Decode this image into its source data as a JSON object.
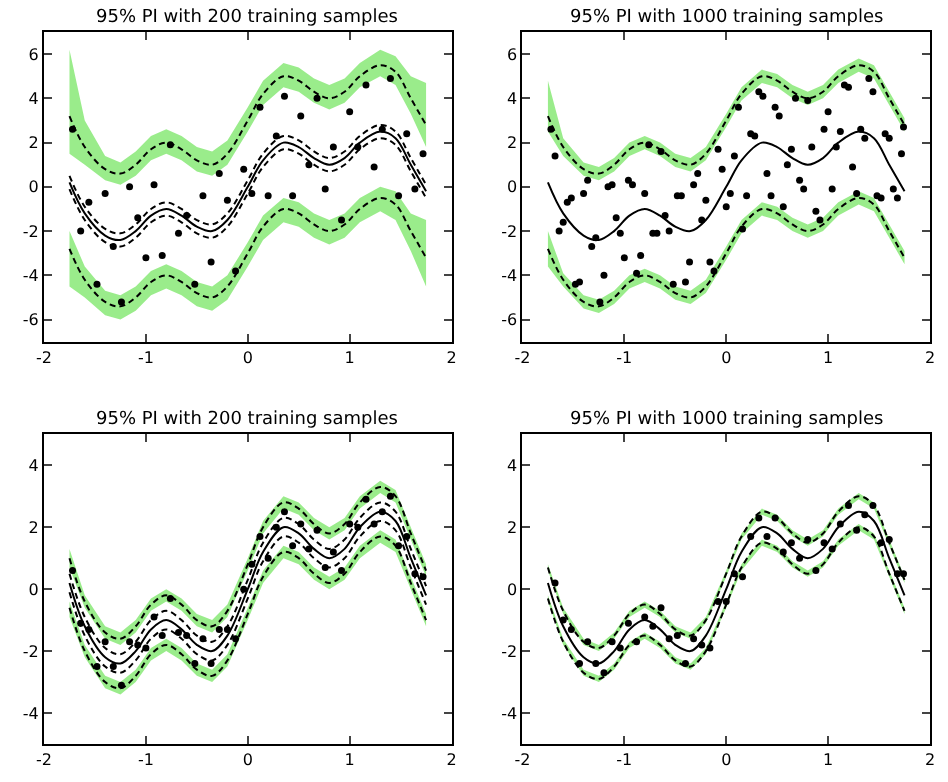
{
  "chart_data": [
    {
      "type": "line",
      "title": "95% PI with 200 training samples",
      "x": [
        -1.75,
        -1.6,
        -1.4,
        -1.25,
        -1.1,
        -0.95,
        -0.8,
        -0.65,
        -0.5,
        -0.35,
        -0.2,
        0,
        0.15,
        0.35,
        0.5,
        0.65,
        0.8,
        0.95,
        1.1,
        1.3,
        1.45,
        1.6,
        1.75
      ],
      "xlim": [
        -2,
        2
      ],
      "xticks": [
        -2,
        -1,
        0,
        1,
        2
      ],
      "ylim": [
        -7,
        7
      ],
      "yticks": [
        -6,
        -4,
        -2,
        0,
        2,
        4,
        6
      ],
      "grid": false,
      "series": [
        {
          "type": "scatter",
          "color": "#000000",
          "marker": "circle",
          "x": [
            -1.72,
            -1.64,
            -1.56,
            -1.48,
            -1.4,
            -1.32,
            -1.24,
            -1.16,
            -1.08,
            -1.0,
            -0.92,
            -0.84,
            -0.76,
            -0.68,
            -0.6,
            -0.52,
            -0.44,
            -0.36,
            -0.28,
            -0.2,
            -0.12,
            -0.04,
            0.04,
            0.12,
            0.2,
            0.28,
            0.36,
            0.44,
            0.52,
            0.6,
            0.68,
            0.76,
            0.84,
            0.92,
            1.0,
            1.08,
            1.16,
            1.24,
            1.32,
            1.4,
            1.48,
            1.56,
            1.64,
            1.72
          ],
          "values": [
            2.6,
            -2.0,
            -0.7,
            -4.4,
            -0.3,
            -2.7,
            -5.2,
            0.0,
            -1.4,
            -3.2,
            0.1,
            -3.1,
            1.9,
            -2.1,
            -1.3,
            -4.4,
            -0.4,
            -3.4,
            0.6,
            -0.6,
            -3.8,
            0.8,
            -0.3,
            3.6,
            -0.4,
            2.3,
            4.1,
            -0.4,
            3.2,
            1.0,
            4.0,
            -0.1,
            1.8,
            -1.5,
            3.4,
            1.8,
            4.6,
            0.9,
            2.6,
            4.9,
            -0.4,
            2.4,
            -0.1,
            1.5
          ]
        },
        {
          "color": "#000000",
          "line_style": "solid",
          "values": [
            0.2,
            -1.2,
            -2.2,
            -2.4,
            -2.0,
            -1.3,
            -1.0,
            -1.3,
            -1.8,
            -2.0,
            -1.5,
            0.0,
            1.2,
            2.0,
            1.8,
            1.3,
            1.0,
            1.3,
            2.0,
            2.5,
            2.2,
            1.0,
            -0.2
          ]
        },
        {
          "color": "#000000",
          "line_style": "dashed",
          "values": [
            0.5,
            -0.9,
            -1.9,
            -2.1,
            -1.7,
            -1.0,
            -0.7,
            -1.0,
            -1.5,
            -1.7,
            -1.2,
            0.3,
            1.5,
            2.3,
            2.1,
            1.6,
            1.3,
            1.6,
            2.3,
            2.8,
            2.5,
            1.3,
            0.1
          ]
        },
        {
          "color": "#000000",
          "line_style": "dashed",
          "values": [
            -0.1,
            -1.5,
            -2.5,
            -2.7,
            -2.3,
            -1.6,
            -1.3,
            -1.6,
            -2.1,
            -2.3,
            -1.8,
            -0.3,
            0.9,
            1.7,
            1.5,
            1.0,
            0.7,
            1.0,
            1.7,
            2.2,
            1.9,
            0.7,
            -0.5
          ]
        },
        {
          "color": "#000000",
          "line_style": "dashed",
          "values": [
            3.2,
            1.8,
            0.8,
            0.6,
            1.0,
            1.7,
            2.0,
            1.7,
            1.2,
            1.0,
            1.5,
            3.0,
            4.2,
            5.0,
            4.8,
            4.3,
            4.0,
            4.3,
            5.0,
            5.5,
            5.2,
            4.0,
            2.8
          ],
          "lower": [
            1.5,
            1.0,
            0.3,
            0.1,
            0.5,
            1.2,
            1.5,
            1.2,
            0.7,
            0.5,
            1.0,
            2.5,
            3.7,
            4.5,
            4.3,
            3.8,
            3.5,
            3.8,
            4.5,
            5.0,
            4.6,
            3.3,
            1.8
          ],
          "upper": [
            6.2,
            3.0,
            1.4,
            1.1,
            1.6,
            2.3,
            2.6,
            2.3,
            1.8,
            1.6,
            2.1,
            3.6,
            4.8,
            5.6,
            5.4,
            4.9,
            4.6,
            4.9,
            5.6,
            6.2,
            5.9,
            5.0,
            4.7
          ]
        },
        {
          "color": "#000000",
          "line_style": "dashed",
          "values": [
            -2.8,
            -4.2,
            -5.2,
            -5.4,
            -5.0,
            -4.3,
            -4.0,
            -4.3,
            -4.8,
            -5.0,
            -4.5,
            -3.0,
            -1.8,
            -1.0,
            -1.2,
            -1.7,
            -2.0,
            -1.7,
            -1.0,
            -0.5,
            -0.8,
            -2.0,
            -3.2
          ],
          "lower": [
            -4.5,
            -5.0,
            -5.8,
            -6.0,
            -5.6,
            -4.9,
            -4.6,
            -4.9,
            -5.4,
            -5.6,
            -5.1,
            -3.6,
            -2.4,
            -1.6,
            -1.8,
            -2.3,
            -2.6,
            -2.3,
            -1.6,
            -1.1,
            -1.5,
            -2.9,
            -4.5
          ],
          "upper": [
            -2.0,
            -3.6,
            -4.7,
            -4.9,
            -4.5,
            -3.8,
            -3.5,
            -3.8,
            -4.3,
            -4.5,
            -4.0,
            -2.5,
            -1.3,
            -0.5,
            -0.7,
            -1.2,
            -1.5,
            -1.2,
            -0.5,
            0.0,
            -0.2,
            -1.2,
            -1.5
          ]
        }
      ]
    },
    {
      "type": "line",
      "title": "95% PI with 1000 training samples",
      "x": [
        -1.75,
        -1.6,
        -1.4,
        -1.25,
        -1.1,
        -0.95,
        -0.8,
        -0.65,
        -0.5,
        -0.35,
        -0.2,
        0,
        0.15,
        0.35,
        0.5,
        0.65,
        0.8,
        0.95,
        1.1,
        1.3,
        1.45,
        1.6,
        1.75
      ],
      "xlim": [
        -2,
        2
      ],
      "xticks": [
        -2,
        -1,
        0,
        1,
        2
      ],
      "ylim": [
        -7,
        7
      ],
      "yticks": [
        -6,
        -4,
        -2,
        0,
        2,
        4,
        6
      ],
      "grid": false,
      "series": [
        {
          "type": "scatter",
          "color": "#000000",
          "marker": "circle",
          "x": [
            -1.72,
            -1.64,
            -1.56,
            -1.48,
            -1.4,
            -1.32,
            -1.24,
            -1.16,
            -1.08,
            -1.0,
            -0.92,
            -0.84,
            -0.76,
            -0.68,
            -0.6,
            -0.52,
            -0.44,
            -0.36,
            -0.28,
            -0.2,
            -0.12,
            -0.04,
            0.04,
            0.12,
            0.2,
            0.28,
            0.36,
            0.44,
            0.52,
            0.6,
            0.68,
            0.76,
            0.84,
            0.92,
            1.0,
            1.08,
            1.16,
            1.24,
            1.32,
            1.4,
            1.48,
            1.56,
            1.64,
            1.72,
            -1.68,
            -1.6,
            -1.52,
            -1.44,
            -1.36,
            -1.28,
            -1.2,
            -1.12,
            -1.04,
            -0.96,
            -0.88,
            -0.8,
            -0.72,
            -0.64,
            -0.56,
            -0.48,
            -0.4,
            -0.32,
            -0.24,
            -0.16,
            -0.08,
            0.0,
            0.08,
            0.16,
            0.24,
            0.32,
            0.4,
            0.48,
            0.56,
            0.64,
            0.72,
            0.8,
            0.88,
            0.96,
            1.04,
            1.12,
            1.2,
            1.28,
            1.36,
            1.44,
            1.52,
            1.6,
            1.68,
            1.74
          ],
          "values": [
            2.6,
            -2.0,
            -0.7,
            -4.4,
            -0.3,
            -2.7,
            -5.2,
            0.0,
            -1.4,
            -3.2,
            0.1,
            -3.1,
            1.9,
            -2.1,
            -1.3,
            -4.4,
            -0.4,
            -3.4,
            0.6,
            -0.6,
            -3.8,
            0.8,
            -0.3,
            3.6,
            -0.4,
            2.3,
            4.1,
            -0.4,
            3.2,
            1.0,
            4.0,
            -0.1,
            1.8,
            -1.5,
            3.4,
            1.8,
            4.6,
            0.9,
            2.6,
            4.9,
            -0.4,
            2.4,
            -0.1,
            1.5,
            1.4,
            -1.6,
            -0.5,
            -4.3,
            0.3,
            -2.3,
            -4.0,
            0.1,
            -2.1,
            0.3,
            -3.9,
            -0.3,
            -2.1,
            1.6,
            -2.0,
            -0.4,
            -4.3,
            0.1,
            -1.5,
            -3.4,
            1.7,
            -0.9,
            1.4,
            -1.9,
            2.4,
            4.3,
            0.6,
            3.6,
            -0.9,
            1.7,
            0.3,
            3.9,
            -1.1,
            2.6,
            -0.1,
            2.5,
            4.5,
            -0.3,
            2.2,
            4.3,
            -0.5,
            2.2,
            -0.5,
            2.7
          ]
        },
        {
          "color": "#000000",
          "line_style": "solid",
          "values": [
            0.2,
            -1.2,
            -2.2,
            -2.4,
            -2.0,
            -1.3,
            -1.0,
            -1.3,
            -1.8,
            -2.0,
            -1.5,
            0.0,
            1.2,
            2.0,
            1.8,
            1.3,
            1.0,
            1.3,
            2.0,
            2.5,
            2.2,
            1.0,
            -0.2
          ]
        },
        {
          "color": "#000000",
          "line_style": "dashed",
          "values": [
            3.2,
            1.8,
            0.8,
            0.6,
            1.0,
            1.7,
            2.0,
            1.7,
            1.2,
            1.0,
            1.5,
            3.0,
            4.2,
            5.0,
            4.8,
            4.3,
            4.0,
            4.3,
            5.0,
            5.5,
            5.2,
            4.0,
            2.8
          ],
          "lower": [
            2.5,
            1.4,
            0.5,
            0.3,
            0.7,
            1.4,
            1.7,
            1.4,
            0.9,
            0.7,
            1.2,
            2.7,
            3.9,
            4.7,
            4.5,
            4.0,
            3.7,
            4.0,
            4.7,
            5.2,
            4.9,
            3.7,
            2.5
          ],
          "upper": [
            4.8,
            2.2,
            1.1,
            0.9,
            1.3,
            2.0,
            2.3,
            2.0,
            1.5,
            1.3,
            1.8,
            3.3,
            4.5,
            5.3,
            5.1,
            4.6,
            4.3,
            4.6,
            5.3,
            5.8,
            5.5,
            4.3,
            3.1
          ]
        },
        {
          "color": "#000000",
          "line_style": "dashed",
          "values": [
            -2.8,
            -4.2,
            -5.2,
            -5.4,
            -5.0,
            -4.3,
            -4.0,
            -4.3,
            -4.8,
            -5.0,
            -4.5,
            -3.0,
            -1.8,
            -1.0,
            -1.2,
            -1.7,
            -2.0,
            -1.7,
            -1.0,
            -0.5,
            -0.8,
            -2.0,
            -3.2
          ],
          "lower": [
            -3.6,
            -4.5,
            -5.5,
            -5.7,
            -5.3,
            -4.6,
            -4.3,
            -4.6,
            -5.1,
            -5.3,
            -4.8,
            -3.3,
            -2.1,
            -1.3,
            -1.5,
            -2.0,
            -2.3,
            -2.0,
            -1.3,
            -0.8,
            -1.1,
            -2.3,
            -3.5
          ],
          "upper": [
            -2.0,
            -3.9,
            -4.9,
            -5.1,
            -4.7,
            -4.0,
            -3.7,
            -4.0,
            -4.5,
            -4.7,
            -4.2,
            -2.7,
            -1.5,
            -0.7,
            -0.9,
            -1.4,
            -1.7,
            -1.4,
            -0.7,
            -0.2,
            -0.5,
            -1.7,
            -2.9
          ]
        }
      ]
    },
    {
      "type": "line",
      "title": "95% PI with 200 training samples",
      "x": [
        -1.75,
        -1.6,
        -1.4,
        -1.25,
        -1.1,
        -0.95,
        -0.8,
        -0.65,
        -0.5,
        -0.35,
        -0.2,
        0,
        0.15,
        0.35,
        0.5,
        0.65,
        0.8,
        0.95,
        1.1,
        1.3,
        1.45,
        1.6,
        1.75
      ],
      "xlim": [
        -2,
        2
      ],
      "xticks": [
        -2,
        -1,
        0,
        1,
        2
      ],
      "ylim": [
        -5,
        5
      ],
      "yticks": [
        -4,
        -2,
        0,
        2,
        4
      ],
      "grid": false,
      "series": [
        {
          "type": "scatter",
          "color": "#000000",
          "marker": "circle",
          "x": [
            -1.72,
            -1.64,
            -1.56,
            -1.48,
            -1.4,
            -1.32,
            -1.24,
            -1.16,
            -1.08,
            -1.0,
            -0.92,
            -0.84,
            -0.76,
            -0.68,
            -0.6,
            -0.52,
            -0.44,
            -0.36,
            -0.28,
            -0.2,
            -0.12,
            -0.04,
            0.04,
            0.12,
            0.2,
            0.28,
            0.36,
            0.44,
            0.52,
            0.6,
            0.68,
            0.76,
            0.84,
            0.92,
            1.0,
            1.08,
            1.16,
            1.24,
            1.32,
            1.4,
            1.48,
            1.56,
            1.64,
            1.72
          ],
          "values": [
            0.6,
            -1.1,
            -1.3,
            -2.5,
            -1.7,
            -2.5,
            -3.1,
            -1.7,
            -1.8,
            -1.9,
            -0.9,
            -1.5,
            -0.3,
            -1.4,
            -1.5,
            -2.4,
            -1.6,
            -2.4,
            -1.3,
            -1.3,
            -1.6,
            0.0,
            0.8,
            1.7,
            1.0,
            2.0,
            2.5,
            1.4,
            2.1,
            1.3,
            1.9,
            0.7,
            1.2,
            0.6,
            2.1,
            2.0,
            2.9,
            2.1,
            2.5,
            3.0,
            1.4,
            1.7,
            0.5,
            0.4
          ]
        },
        {
          "color": "#000000",
          "line_style": "solid",
          "values": [
            0.2,
            -1.2,
            -2.2,
            -2.4,
            -2.0,
            -1.3,
            -1.0,
            -1.3,
            -1.8,
            -2.0,
            -1.5,
            0.0,
            1.2,
            2.0,
            1.8,
            1.3,
            1.0,
            1.3,
            2.0,
            2.5,
            2.2,
            1.0,
            -0.2
          ]
        },
        {
          "color": "#000000",
          "line_style": "dashed",
          "values": [
            0.5,
            -0.9,
            -1.9,
            -2.1,
            -1.7,
            -1.0,
            -0.7,
            -1.0,
            -1.5,
            -1.7,
            -1.2,
            0.3,
            1.5,
            2.3,
            2.1,
            1.6,
            1.3,
            1.6,
            2.3,
            2.8,
            2.5,
            1.3,
            0.1
          ]
        },
        {
          "color": "#000000",
          "line_style": "dashed",
          "values": [
            -0.1,
            -1.5,
            -2.5,
            -2.7,
            -2.3,
            -1.6,
            -1.3,
            -1.6,
            -2.1,
            -2.3,
            -1.8,
            -0.3,
            0.9,
            1.7,
            1.5,
            1.0,
            0.7,
            1.0,
            1.7,
            2.2,
            1.9,
            0.7,
            -0.5
          ]
        },
        {
          "color": "#000000",
          "line_style": "dashed",
          "values": [
            1.0,
            -0.4,
            -1.4,
            -1.6,
            -1.2,
            -0.5,
            -0.2,
            -0.5,
            -1.0,
            -1.2,
            -0.7,
            0.8,
            2.0,
            2.8,
            2.6,
            2.1,
            1.8,
            2.1,
            2.8,
            3.3,
            3.0,
            1.8,
            0.6
          ],
          "lower": [
            0.7,
            -0.6,
            -1.6,
            -1.8,
            -1.4,
            -0.7,
            -0.4,
            -0.7,
            -1.2,
            -1.4,
            -0.9,
            0.6,
            1.8,
            2.6,
            2.4,
            1.9,
            1.6,
            1.9,
            2.6,
            3.1,
            2.8,
            1.6,
            0.4
          ],
          "upper": [
            1.3,
            -0.2,
            -1.2,
            -1.4,
            -1.0,
            -0.3,
            0.0,
            -0.3,
            -0.8,
            -1.0,
            -0.5,
            1.0,
            2.2,
            3.0,
            2.8,
            2.3,
            2.0,
            2.3,
            3.0,
            3.5,
            3.2,
            2.0,
            0.8
          ]
        },
        {
          "color": "#000000",
          "line_style": "dashed",
          "values": [
            -0.6,
            -2.0,
            -3.0,
            -3.2,
            -2.8,
            -2.1,
            -1.8,
            -2.1,
            -2.6,
            -2.8,
            -2.3,
            -0.8,
            0.4,
            1.2,
            1.0,
            0.5,
            0.2,
            0.5,
            1.2,
            1.7,
            1.4,
            0.2,
            -1.0
          ],
          "lower": [
            -0.9,
            -2.2,
            -3.2,
            -3.4,
            -3.0,
            -2.3,
            -2.0,
            -2.3,
            -2.8,
            -3.0,
            -2.5,
            -1.0,
            0.2,
            1.0,
            0.8,
            0.3,
            0.0,
            0.3,
            1.0,
            1.5,
            1.2,
            0.0,
            -1.2
          ],
          "upper": [
            -0.4,
            -1.8,
            -2.8,
            -3.0,
            -2.6,
            -1.9,
            -1.6,
            -1.9,
            -2.4,
            -2.6,
            -2.1,
            -0.6,
            0.6,
            1.4,
            1.2,
            0.7,
            0.4,
            0.7,
            1.4,
            1.9,
            1.6,
            0.4,
            -0.8
          ]
        }
      ]
    },
    {
      "type": "line",
      "title": "95% PI with 1000 training samples",
      "x": [
        -1.75,
        -1.6,
        -1.4,
        -1.25,
        -1.1,
        -0.95,
        -0.8,
        -0.65,
        -0.5,
        -0.35,
        -0.2,
        0,
        0.15,
        0.35,
        0.5,
        0.65,
        0.8,
        0.95,
        1.1,
        1.3,
        1.45,
        1.6,
        1.75
      ],
      "xlim": [
        -2,
        2
      ],
      "xticks": [
        -2,
        -1,
        0,
        1,
        2
      ],
      "ylim": [
        -5,
        5
      ],
      "yticks": [
        -4,
        -2,
        0,
        2,
        4
      ],
      "grid": false,
      "series": [
        {
          "type": "scatter",
          "color": "#000000",
          "marker": "circle",
          "x": [
            -1.68,
            -1.6,
            -1.52,
            -1.44,
            -1.36,
            -1.28,
            -1.2,
            -1.12,
            -1.04,
            -0.96,
            -0.88,
            -0.8,
            -0.72,
            -0.64,
            -0.56,
            -0.48,
            -0.4,
            -0.32,
            -0.24,
            -0.16,
            -0.08,
            0.0,
            0.08,
            0.16,
            0.24,
            0.32,
            0.4,
            0.48,
            0.56,
            0.64,
            0.72,
            0.8,
            0.88,
            0.96,
            1.04,
            1.12,
            1.2,
            1.28,
            1.36,
            1.44,
            1.52,
            1.6,
            1.68,
            1.74
          ],
          "values": [
            0.2,
            -1.0,
            -1.3,
            -2.4,
            -1.7,
            -2.4,
            -2.7,
            -1.7,
            -1.9,
            -1.1,
            -1.7,
            -0.9,
            -1.2,
            -0.6,
            -1.6,
            -1.5,
            -2.4,
            -1.6,
            -1.8,
            -1.9,
            -0.4,
            -0.4,
            0.5,
            0.4,
            1.7,
            2.3,
            1.7,
            2.3,
            1.2,
            1.5,
            1.0,
            1.6,
            0.6,
            1.5,
            1.3,
            2.1,
            2.7,
            1.9,
            2.4,
            2.7,
            1.5,
            1.6,
            0.5,
            0.5
          ]
        },
        {
          "color": "#000000",
          "line_style": "solid",
          "values": [
            0.2,
            -1.2,
            -2.2,
            -2.4,
            -2.0,
            -1.3,
            -1.0,
            -1.3,
            -1.8,
            -2.0,
            -1.5,
            0.0,
            1.2,
            2.0,
            1.8,
            1.3,
            1.0,
            1.3,
            2.0,
            2.5,
            2.2,
            1.0,
            -0.2
          ]
        },
        {
          "color": "#000000",
          "line_style": "dashed",
          "values": [
            0.7,
            -0.7,
            -1.7,
            -1.9,
            -1.5,
            -0.8,
            -0.5,
            -0.8,
            -1.3,
            -1.5,
            -1.0,
            0.5,
            1.7,
            2.5,
            2.3,
            1.8,
            1.5,
            1.8,
            2.5,
            3.0,
            2.7,
            1.5,
            0.3
          ],
          "lower": [
            0.6,
            -0.8,
            -1.8,
            -2.0,
            -1.6,
            -0.9,
            -0.6,
            -0.9,
            -1.4,
            -1.6,
            -1.1,
            0.4,
            1.6,
            2.4,
            2.2,
            1.7,
            1.4,
            1.7,
            2.4,
            2.9,
            2.6,
            1.4,
            0.2
          ],
          "upper": [
            0.8,
            -0.6,
            -1.6,
            -1.8,
            -1.4,
            -0.7,
            -0.4,
            -0.7,
            -1.2,
            -1.4,
            -0.9,
            0.6,
            1.8,
            2.6,
            2.4,
            1.9,
            1.6,
            1.9,
            2.6,
            3.1,
            2.8,
            1.6,
            0.4
          ]
        },
        {
          "color": "#000000",
          "line_style": "dashed",
          "values": [
            -0.3,
            -1.7,
            -2.7,
            -2.9,
            -2.5,
            -1.8,
            -1.5,
            -1.8,
            -2.3,
            -2.5,
            -2.0,
            -0.5,
            0.7,
            1.5,
            1.3,
            0.8,
            0.5,
            0.8,
            1.5,
            2.0,
            1.7,
            0.5,
            -0.7
          ],
          "lower": [
            -0.4,
            -1.8,
            -2.8,
            -3.0,
            -2.6,
            -1.9,
            -1.6,
            -1.9,
            -2.4,
            -2.6,
            -2.1,
            -0.6,
            0.6,
            1.4,
            1.2,
            0.7,
            0.4,
            0.7,
            1.4,
            1.9,
            1.6,
            0.4,
            -0.8
          ],
          "upper": [
            -0.2,
            -1.6,
            -2.6,
            -2.8,
            -2.4,
            -1.7,
            -1.4,
            -1.7,
            -2.2,
            -2.4,
            -1.9,
            -0.4,
            0.8,
            1.6,
            1.4,
            0.9,
            0.6,
            0.9,
            1.6,
            2.1,
            1.8,
            0.6,
            -0.6
          ]
        }
      ]
    }
  ]
}
